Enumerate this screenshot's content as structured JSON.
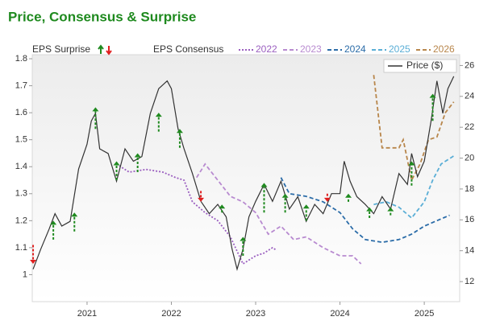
{
  "chart_data": {
    "type": "line",
    "title": "Price, Consensus & Surprise",
    "surprise_label": "EPS Surprise",
    "consensus_label": "EPS Consensus",
    "xlim": [
      2020.35,
      2025.42
    ],
    "xticks": [
      2021,
      2022,
      2023,
      2024,
      2025
    ],
    "ylim": [
      0.9,
      1.815
    ],
    "yticks": [
      1,
      1.1,
      1.2,
      1.3,
      1.4,
      1.5,
      1.6,
      1.7,
      1.8
    ],
    "y2lim": [
      10.7,
      26.7
    ],
    "y2ticks": [
      12,
      14,
      16,
      18,
      20,
      22,
      24,
      26
    ],
    "series": [
      {
        "name": "2022",
        "color": "#9b5fc0",
        "style": "dotted",
        "x": [
          2021.35,
          2021.5,
          2021.7,
          2021.9,
          2022.05,
          2022.15,
          2022.25,
          2022.4,
          2022.55,
          2022.7,
          2022.85,
          2023.0,
          2023.1,
          2023.2,
          2023.25
        ],
        "values": [
          1.41,
          1.38,
          1.39,
          1.38,
          1.36,
          1.35,
          1.27,
          1.23,
          1.2,
          1.14,
          1.04,
          1.07,
          1.08,
          1.1,
          1.09
        ]
      },
      {
        "name": "2023",
        "color": "#b88ad0",
        "style": "dashed",
        "x": [
          2022.3,
          2022.4,
          2022.55,
          2022.7,
          2022.85,
          2023.0,
          2023.15,
          2023.3,
          2023.45,
          2023.6,
          2023.8,
          2024.0,
          2024.15,
          2024.25
        ],
        "values": [
          1.36,
          1.41,
          1.35,
          1.29,
          1.27,
          1.23,
          1.15,
          1.18,
          1.13,
          1.14,
          1.1,
          1.07,
          1.07,
          1.04
        ]
      },
      {
        "name": "2024",
        "color": "#2b6ca8",
        "style": "dashed",
        "x": [
          2023.3,
          2023.4,
          2023.6,
          2023.8,
          2024.0,
          2024.15,
          2024.3,
          2024.5,
          2024.7,
          2024.85,
          2025.0,
          2025.15,
          2025.3
        ],
        "values": [
          1.36,
          1.3,
          1.29,
          1.27,
          1.23,
          1.17,
          1.13,
          1.12,
          1.13,
          1.15,
          1.18,
          1.2,
          1.22
        ]
      },
      {
        "name": "2025",
        "color": "#5aaed6",
        "style": "dashed",
        "x": [
          2024.4,
          2024.55,
          2024.7,
          2024.85,
          2025.0,
          2025.1,
          2025.2,
          2025.35
        ],
        "values": [
          1.26,
          1.27,
          1.25,
          1.21,
          1.27,
          1.35,
          1.41,
          1.44
        ]
      },
      {
        "name": "2026",
        "color": "#b8864b",
        "style": "dashed",
        "x": [
          2024.4,
          2024.5,
          2024.7,
          2024.75,
          2024.85,
          2024.95,
          2025.05,
          2025.15,
          2025.25,
          2025.35
        ],
        "values": [
          1.74,
          1.47,
          1.47,
          1.5,
          1.35,
          1.41,
          1.5,
          1.51,
          1.6,
          1.64
        ]
      },
      {
        "name": "Price ($)",
        "color": "#333333",
        "style": "solid",
        "axis": "y2",
        "x": [
          2020.36,
          2020.45,
          2020.55,
          2020.62,
          2020.7,
          2020.8,
          2020.9,
          2021.0,
          2021.05,
          2021.1,
          2021.15,
          2021.25,
          2021.35,
          2021.45,
          2021.55,
          2021.65,
          2021.75,
          2021.85,
          2021.95,
          2022.0,
          2022.08,
          2022.15,
          2022.25,
          2022.35,
          2022.45,
          2022.55,
          2022.65,
          2022.72,
          2022.78,
          2022.85,
          2022.92,
          2023.0,
          2023.1,
          2023.2,
          2023.3,
          2023.4,
          2023.5,
          2023.6,
          2023.7,
          2023.8,
          2023.9,
          2024.0,
          2024.05,
          2024.12,
          2024.2,
          2024.3,
          2024.4,
          2024.5,
          2024.6,
          2024.7,
          2024.8,
          2024.85,
          2024.92,
          2025.0,
          2025.08,
          2025.15,
          2025.22,
          2025.28,
          2025.35
        ],
        "values": [
          12.8,
          14.1,
          15.4,
          16.4,
          15.6,
          15.9,
          19.3,
          20.9,
          22.4,
          22.9,
          20.6,
          20.3,
          18.5,
          20.6,
          19.8,
          20.1,
          22.9,
          24.5,
          25.0,
          24.5,
          21.9,
          20.6,
          19.0,
          17.2,
          16.4,
          17.0,
          16.2,
          14.1,
          12.8,
          14.1,
          16.2,
          17.2,
          18.3,
          17.2,
          18.5,
          16.7,
          17.5,
          15.9,
          17.0,
          16.4,
          17.7,
          17.7,
          19.8,
          18.5,
          17.5,
          17.0,
          16.4,
          17.5,
          16.7,
          19.0,
          18.3,
          20.3,
          18.8,
          19.8,
          22.4,
          25.0,
          22.9,
          24.5,
          25.3
        ]
      }
    ],
    "surprises": [
      {
        "x": 2020.36,
        "estimate": 1.11,
        "actual": 1.04
      },
      {
        "x": 2020.6,
        "estimate": 1.13,
        "actual": 1.2
      },
      {
        "x": 2020.85,
        "estimate": 1.16,
        "actual": 1.23
      },
      {
        "x": 2021.1,
        "estimate": 1.54,
        "actual": 1.62
      },
      {
        "x": 2021.35,
        "estimate": 1.35,
        "actual": 1.42
      },
      {
        "x": 2021.6,
        "estimate": 1.38,
        "actual": 1.45
      },
      {
        "x": 2021.85,
        "estimate": 1.53,
        "actual": 1.6
      },
      {
        "x": 2022.1,
        "estimate": 1.47,
        "actual": 1.54
      },
      {
        "x": 2022.35,
        "estimate": 1.31,
        "actual": 1.27
      },
      {
        "x": 2022.6,
        "estimate": 1.23,
        "actual": 1.26
      },
      {
        "x": 2022.85,
        "estimate": 1.07,
        "actual": 1.14
      },
      {
        "x": 2023.1,
        "estimate": 1.23,
        "actual": 1.34
      },
      {
        "x": 2023.35,
        "estimate": 1.23,
        "actual": 1.3
      },
      {
        "x": 2023.6,
        "estimate": 1.2,
        "actual": 1.26
      },
      {
        "x": 2023.85,
        "estimate": 1.3,
        "actual": 1.27
      },
      {
        "x": 2024.1,
        "estimate": 1.27,
        "actual": 1.3
      },
      {
        "x": 2024.35,
        "estimate": 1.21,
        "actual": 1.25
      },
      {
        "x": 2024.6,
        "estimate": 1.22,
        "actual": 1.25
      },
      {
        "x": 2024.85,
        "estimate": 1.33,
        "actual": 1.42
      },
      {
        "x": 2025.1,
        "estimate": 1.57,
        "actual": 1.67
      }
    ]
  }
}
